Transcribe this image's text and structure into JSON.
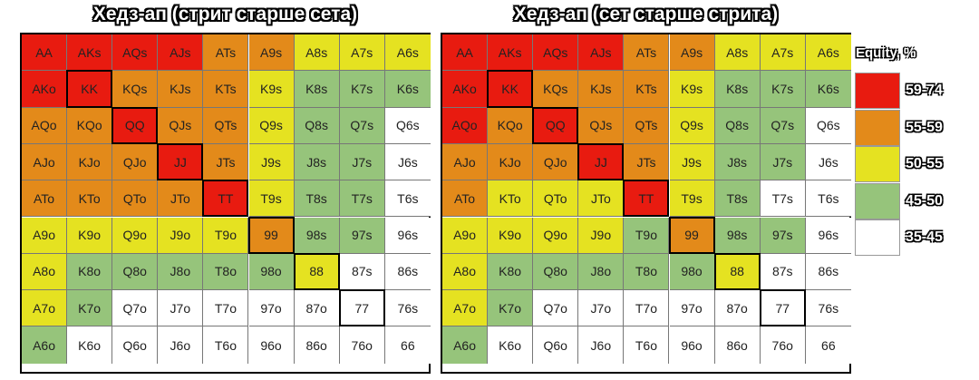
{
  "chart_data": [
    {
      "type": "heatmap",
      "title": "Хедз-ап (стрит старше сета)",
      "color_classes": [
        "59-74",
        "55-59",
        "50-55",
        "45-50",
        "35-45"
      ],
      "pairs": [
        "KK",
        "QQ",
        "JJ",
        "TT",
        "99",
        "88",
        "77"
      ],
      "rows": [
        [
          [
            "AA",
            0
          ],
          [
            "AKs",
            0
          ],
          [
            "AQs",
            0
          ],
          [
            "AJs",
            0
          ],
          [
            "ATs",
            1
          ],
          [
            "A9s",
            1
          ],
          [
            "A8s",
            2
          ],
          [
            "A7s",
            2
          ],
          [
            "A6s",
            2
          ]
        ],
        [
          [
            "AKo",
            0
          ],
          [
            "KK",
            0
          ],
          [
            "KQs",
            1
          ],
          [
            "KJs",
            1
          ],
          [
            "KTs",
            1
          ],
          [
            "K9s",
            2
          ],
          [
            "K8s",
            3
          ],
          [
            "K7s",
            3
          ],
          [
            "K6s",
            3
          ]
        ],
        [
          [
            "AQo",
            1
          ],
          [
            "KQo",
            1
          ],
          [
            "QQ",
            0
          ],
          [
            "QJs",
            1
          ],
          [
            "QTs",
            1
          ],
          [
            "Q9s",
            2
          ],
          [
            "Q8s",
            3
          ],
          [
            "Q7s",
            3
          ],
          [
            "Q6s",
            4
          ]
        ],
        [
          [
            "AJo",
            1
          ],
          [
            "KJo",
            1
          ],
          [
            "QJo",
            1
          ],
          [
            "JJ",
            0
          ],
          [
            "JTs",
            1
          ],
          [
            "J9s",
            2
          ],
          [
            "J8s",
            3
          ],
          [
            "J7s",
            3
          ],
          [
            "J6s",
            4
          ]
        ],
        [
          [
            "ATo",
            1
          ],
          [
            "KTo",
            1
          ],
          [
            "QTo",
            1
          ],
          [
            "JTo",
            1
          ],
          [
            "TT",
            0
          ],
          [
            "T9s",
            2
          ],
          [
            "T8s",
            3
          ],
          [
            "T7s",
            3
          ],
          [
            "T6s",
            4
          ]
        ],
        [
          [
            "A9o",
            2
          ],
          [
            "K9o",
            2
          ],
          [
            "Q9o",
            2
          ],
          [
            "J9o",
            2
          ],
          [
            "T9o",
            2
          ],
          [
            "99",
            1
          ],
          [
            "98s",
            3
          ],
          [
            "97s",
            3
          ],
          [
            "96s",
            4
          ]
        ],
        [
          [
            "A8o",
            2
          ],
          [
            "K8o",
            3
          ],
          [
            "Q8o",
            3
          ],
          [
            "J8o",
            3
          ],
          [
            "T8o",
            3
          ],
          [
            "98o",
            3
          ],
          [
            "88",
            2
          ],
          [
            "87s",
            4
          ],
          [
            "86s",
            4
          ]
        ],
        [
          [
            "A7o",
            2
          ],
          [
            "K7o",
            3
          ],
          [
            "Q7o",
            4
          ],
          [
            "J7o",
            4
          ],
          [
            "T7o",
            4
          ],
          [
            "97o",
            4
          ],
          [
            "87o",
            4
          ],
          [
            "77",
            4
          ],
          [
            "76s",
            4
          ]
        ],
        [
          [
            "A6o",
            3
          ],
          [
            "K6o",
            4
          ],
          [
            "Q6o",
            4
          ],
          [
            "J6o",
            4
          ],
          [
            "T6o",
            4
          ],
          [
            "96o",
            4
          ],
          [
            "86o",
            4
          ],
          [
            "76o",
            4
          ],
          [
            "66",
            4
          ]
        ]
      ]
    },
    {
      "type": "heatmap",
      "title": "Хедз-ап (сет старше стрита)",
      "color_classes": [
        "59-74",
        "55-59",
        "50-55",
        "45-50",
        "35-45"
      ],
      "pairs": [
        "KK",
        "QQ",
        "JJ",
        "TT",
        "99",
        "88",
        "77"
      ],
      "rows": [
        [
          [
            "AA",
            0
          ],
          [
            "AKs",
            0
          ],
          [
            "AQs",
            0
          ],
          [
            "AJs",
            0
          ],
          [
            "ATs",
            1
          ],
          [
            "A9s",
            1
          ],
          [
            "A8s",
            2
          ],
          [
            "A7s",
            2
          ],
          [
            "A6s",
            2
          ]
        ],
        [
          [
            "AKo",
            0
          ],
          [
            "KK",
            0
          ],
          [
            "KQs",
            1
          ],
          [
            "KJs",
            1
          ],
          [
            "KTs",
            1
          ],
          [
            "K9s",
            2
          ],
          [
            "K8s",
            3
          ],
          [
            "K7s",
            3
          ],
          [
            "K6s",
            3
          ]
        ],
        [
          [
            "AQo",
            0
          ],
          [
            "KQo",
            1
          ],
          [
            "QQ",
            0
          ],
          [
            "QJs",
            1
          ],
          [
            "QTs",
            1
          ],
          [
            "Q9s",
            2
          ],
          [
            "Q8s",
            3
          ],
          [
            "Q7s",
            3
          ],
          [
            "Q6s",
            4
          ]
        ],
        [
          [
            "AJo",
            1
          ],
          [
            "KJo",
            1
          ],
          [
            "QJo",
            1
          ],
          [
            "JJ",
            0
          ],
          [
            "JTs",
            1
          ],
          [
            "J9s",
            2
          ],
          [
            "J8s",
            3
          ],
          [
            "J7s",
            3
          ],
          [
            "J6s",
            4
          ]
        ],
        [
          [
            "ATo",
            1
          ],
          [
            "KTo",
            2
          ],
          [
            "QTo",
            2
          ],
          [
            "JTo",
            2
          ],
          [
            "TT",
            0
          ],
          [
            "T9s",
            2
          ],
          [
            "T8s",
            3
          ],
          [
            "T7s",
            4
          ],
          [
            "T6s",
            4
          ]
        ],
        [
          [
            "A9o",
            2
          ],
          [
            "K9o",
            2
          ],
          [
            "Q9o",
            2
          ],
          [
            "J9o",
            2
          ],
          [
            "T9o",
            3
          ],
          [
            "99",
            1
          ],
          [
            "98s",
            3
          ],
          [
            "97s",
            3
          ],
          [
            "96s",
            4
          ]
        ],
        [
          [
            "A8o",
            2
          ],
          [
            "K8o",
            3
          ],
          [
            "Q8o",
            3
          ],
          [
            "J8o",
            3
          ],
          [
            "T8o",
            3
          ],
          [
            "98o",
            3
          ],
          [
            "88",
            2
          ],
          [
            "87s",
            4
          ],
          [
            "86s",
            4
          ]
        ],
        [
          [
            "A7o",
            2
          ],
          [
            "K7o",
            3
          ],
          [
            "Q7o",
            4
          ],
          [
            "J7o",
            4
          ],
          [
            "T7o",
            4
          ],
          [
            "97o",
            4
          ],
          [
            "87o",
            4
          ],
          [
            "77",
            4
          ],
          [
            "76s",
            4
          ]
        ],
        [
          [
            "A6o",
            3
          ],
          [
            "K6o",
            4
          ],
          [
            "Q6o",
            4
          ],
          [
            "J6o",
            4
          ],
          [
            "T6o",
            4
          ],
          [
            "96o",
            4
          ],
          [
            "86o",
            4
          ],
          [
            "76o",
            4
          ],
          [
            "66",
            4
          ]
        ]
      ]
    }
  ],
  "legend": {
    "title": "Equity, %",
    "items": [
      {
        "label": "59-74",
        "color": "#e81b10"
      },
      {
        "label": "55-59",
        "color": "#e38a1a"
      },
      {
        "label": "50-55",
        "color": "#e5e221"
      },
      {
        "label": "45-50",
        "color": "#96c47b"
      },
      {
        "label": "35-45",
        "color": "#ffffff"
      }
    ]
  }
}
